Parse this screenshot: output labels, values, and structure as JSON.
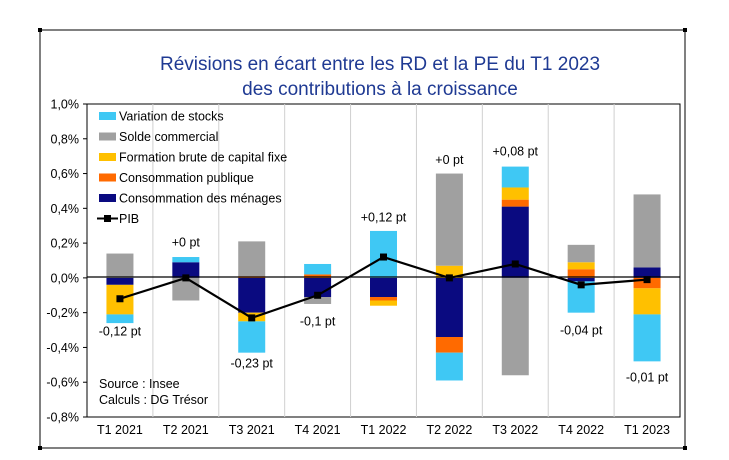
{
  "chart_data": {
    "type": "bar",
    "stacked": true,
    "title": [
      "Révisions en écart entre les RD et la PE du T1 2023",
      "des contributions à la croissance"
    ],
    "xlabel": "",
    "ylabel": "",
    "ylim": [
      -0.8,
      1.0
    ],
    "yticks": [
      "-0,8%",
      "-0,6%",
      "-0,4%",
      "-0,2%",
      "0,0%",
      "0,2%",
      "0,4%",
      "0,6%",
      "0,8%",
      "1,0%"
    ],
    "ytick_values": [
      -0.8,
      -0.6,
      -0.4,
      -0.2,
      0.0,
      0.2,
      0.4,
      0.6,
      0.8,
      1.0
    ],
    "categories": [
      "T1 2021",
      "T2 2021",
      "T3 2021",
      "T4 2021",
      "T1 2022",
      "T2 2022",
      "T3 2022",
      "T4 2022",
      "T1 2023"
    ],
    "grid": "vertical-separators",
    "legend_position": "top-left",
    "series": [
      {
        "name": "Consommation des ménages",
        "color": "#0a0a80",
        "values": [
          -0.04,
          0.09,
          -0.2,
          -0.11,
          -0.11,
          -0.34,
          0.41,
          -0.02,
          0.06
        ]
      },
      {
        "name": "Consommation publique",
        "color": "#ff6a00",
        "values": [
          0.0,
          0.0,
          0.01,
          0.02,
          -0.02,
          -0.09,
          0.04,
          0.05,
          -0.06
        ]
      },
      {
        "name": "Formation brute de capital fixe",
        "color": "#ffc000",
        "values": [
          -0.17,
          0.0,
          -0.05,
          0.0,
          -0.03,
          0.07,
          0.07,
          0.04,
          -0.15
        ]
      },
      {
        "name": "Solde commercial",
        "color": "#a0a0a0",
        "values": [
          0.14,
          -0.13,
          0.2,
          -0.04,
          0.0,
          0.53,
          -0.56,
          0.1,
          0.42
        ]
      },
      {
        "name": "Variation de stocks",
        "color": "#3fc8f4",
        "values": [
          -0.05,
          0.03,
          -0.18,
          0.06,
          0.27,
          -0.16,
          0.12,
          -0.18,
          -0.27
        ]
      }
    ],
    "pib": {
      "name": "PIB",
      "color": "#000000",
      "values": [
        -0.12,
        0.0,
        -0.23,
        -0.1,
        0.12,
        0.0,
        0.08,
        -0.04,
        -0.01
      ]
    },
    "legend": [
      {
        "label": "Variation de stocks",
        "type": "rect",
        "color": "#3fc8f4"
      },
      {
        "label": "Solde commercial",
        "type": "rect",
        "color": "#a0a0a0"
      },
      {
        "label": "Formation brute de capital fixe",
        "type": "rect",
        "color": "#ffc000"
      },
      {
        "label": "Consommation publique",
        "type": "rect",
        "color": "#ff6a00"
      },
      {
        "label": "Consommation des ménages",
        "type": "rect",
        "color": "#0a0a80"
      },
      {
        "label": "PIB",
        "type": "line",
        "color": "#000000"
      }
    ],
    "annotations": [
      "-0,12 pt",
      "+0 pt",
      "-0,23 pt",
      "-0,1 pt",
      "+0,12 pt",
      "+0 pt",
      "+0,08 pt",
      "-0,04 pt",
      "-0,01 pt"
    ],
    "source": [
      "Source : Insee",
      "Calculs : DG Trésor"
    ]
  }
}
